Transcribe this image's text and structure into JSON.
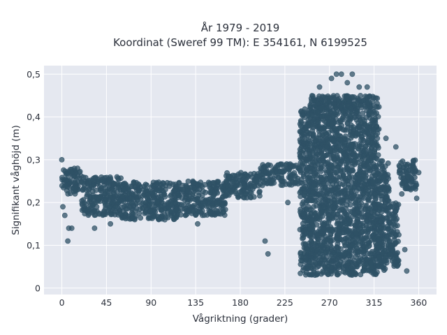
{
  "chart_data": {
    "type": "scatter",
    "title": "År 1979 - 2019",
    "subtitle": "Koordinat (Sweref 99 TM): E 354161, N 6199525",
    "xlabel": "Vågriktning (grader)",
    "ylabel": "Signifikant våghöjd (m)",
    "x_ticks": [
      "0",
      "45",
      "90",
      "135",
      "180",
      "225",
      "270",
      "315",
      "360"
    ],
    "y_ticks": [
      "0",
      "0,1",
      "0,2",
      "0,3",
      "0,4",
      "0,5"
    ],
    "xlim": [
      -18,
      378
    ],
    "ylim": [
      -0.015,
      0.52
    ],
    "grid": true,
    "colors": {
      "marker": "#2f5166",
      "plot_bg": "#e5e8f0",
      "grid": "#ffffff"
    },
    "series": [
      {
        "marker_color": "#2f5166",
        "dense_regions": [
          {
            "x": [
              0,
              20
            ],
            "y": [
              0.22,
              0.28
            ]
          },
          {
            "x": [
              20,
              60
            ],
            "y": [
              0.17,
              0.26
            ]
          },
          {
            "x": [
              60,
              120
            ],
            "y": [
              0.16,
              0.25
            ]
          },
          {
            "x": [
              120,
              165
            ],
            "y": [
              0.17,
              0.25
            ]
          },
          {
            "x": [
              165,
              200
            ],
            "y": [
              0.21,
              0.27
            ]
          },
          {
            "x": [
              200,
              240
            ],
            "y": [
              0.24,
              0.29
            ]
          },
          {
            "x": [
              240,
              250
            ],
            "y": [
              0.03,
              0.42
            ]
          },
          {
            "x": [
              250,
              320
            ],
            "y": [
              0.03,
              0.45
            ]
          },
          {
            "x": [
              320,
              330
            ],
            "y": [
              0.04,
              0.3
            ]
          },
          {
            "x": [
              330,
              340
            ],
            "y": [
              0.05,
              0.2
            ]
          },
          {
            "x": [
              340,
              358
            ],
            "y": [
              0.23,
              0.3
            ]
          }
        ],
        "outliers": [
          {
            "x": 0,
            "y": 0.3
          },
          {
            "x": 1,
            "y": 0.19
          },
          {
            "x": 3,
            "y": 0.17
          },
          {
            "x": 6,
            "y": 0.11
          },
          {
            "x": 7,
            "y": 0.14
          },
          {
            "x": 10,
            "y": 0.14
          },
          {
            "x": 33,
            "y": 0.14
          },
          {
            "x": 49,
            "y": 0.15
          },
          {
            "x": 137,
            "y": 0.15
          },
          {
            "x": 205,
            "y": 0.11
          },
          {
            "x": 208,
            "y": 0.08
          },
          {
            "x": 228,
            "y": 0.2
          },
          {
            "x": 243,
            "y": 0.36
          },
          {
            "x": 260,
            "y": 0.47
          },
          {
            "x": 272,
            "y": 0.49
          },
          {
            "x": 277,
            "y": 0.5
          },
          {
            "x": 282,
            "y": 0.5
          },
          {
            "x": 288,
            "y": 0.48
          },
          {
            "x": 293,
            "y": 0.5
          },
          {
            "x": 300,
            "y": 0.47
          },
          {
            "x": 308,
            "y": 0.47
          },
          {
            "x": 327,
            "y": 0.35
          },
          {
            "x": 337,
            "y": 0.33
          },
          {
            "x": 343,
            "y": 0.22
          },
          {
            "x": 346,
            "y": 0.09
          },
          {
            "x": 348,
            "y": 0.04
          },
          {
            "x": 352,
            "y": 0.23
          },
          {
            "x": 358,
            "y": 0.21
          },
          {
            "x": 360,
            "y": 0.27
          }
        ]
      }
    ]
  }
}
